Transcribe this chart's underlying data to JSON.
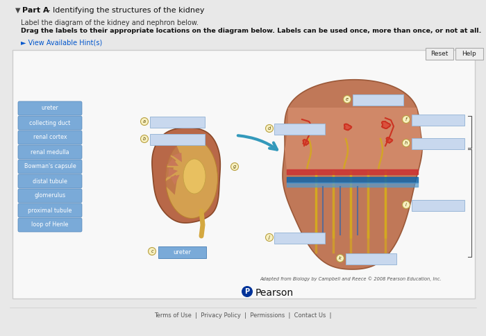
{
  "bg_color": "#e8e8e8",
  "panel_bg": "#f5f5f5",
  "title_part_bold": "Part A",
  "title_part_rest": " - Identifying the structures of the kidney",
  "subtitle1": "Label the diagram of the kidney and nephron below.",
  "subtitle2": "Drag the labels to their appropriate locations on the diagram below. Labels can be used once, more than once, or not at all.",
  "hint_text": "► View Available Hint(s)",
  "button_reset": "Reset",
  "button_help": "Help",
  "labels": [
    "ureter",
    "collecting duct",
    "renal cortex",
    "renal medulla",
    "Bowman's capsule",
    "distal tubule",
    "glomerulus",
    "proximal tubule",
    "loop of Henle"
  ],
  "label_btn_color": "#7aaad8",
  "label_btn_text_color": "#ffffff",
  "blank_box_color": "#c8d8ee",
  "blank_box_border": "#9ab8d8",
  "circle_fill": "#f8f0c0",
  "circle_border": "#b8a040",
  "arrow_color": "#3399bb",
  "kidney_outer": "#c07858",
  "kidney_inner": "#d4a865",
  "kidney_pelvis": "#e8c878",
  "nephron_cortex": "#d4906a",
  "nephron_medulla": "#c07858",
  "nephron_stripe_red": "#cc3333",
  "nephron_stripe_blue": "#4488bb",
  "nephron_stripe_ltblue": "#88bbdd",
  "tubule_color": "#d4a820",
  "footer_text": "Adapted from Biology by Campbell and Reece © 2008 Pearson Education, Inc.",
  "pearson_text": "Pearson",
  "bottom_text": "Terms of Use  |  Privacy Policy  |  Permissions  |  Contact Us  |"
}
